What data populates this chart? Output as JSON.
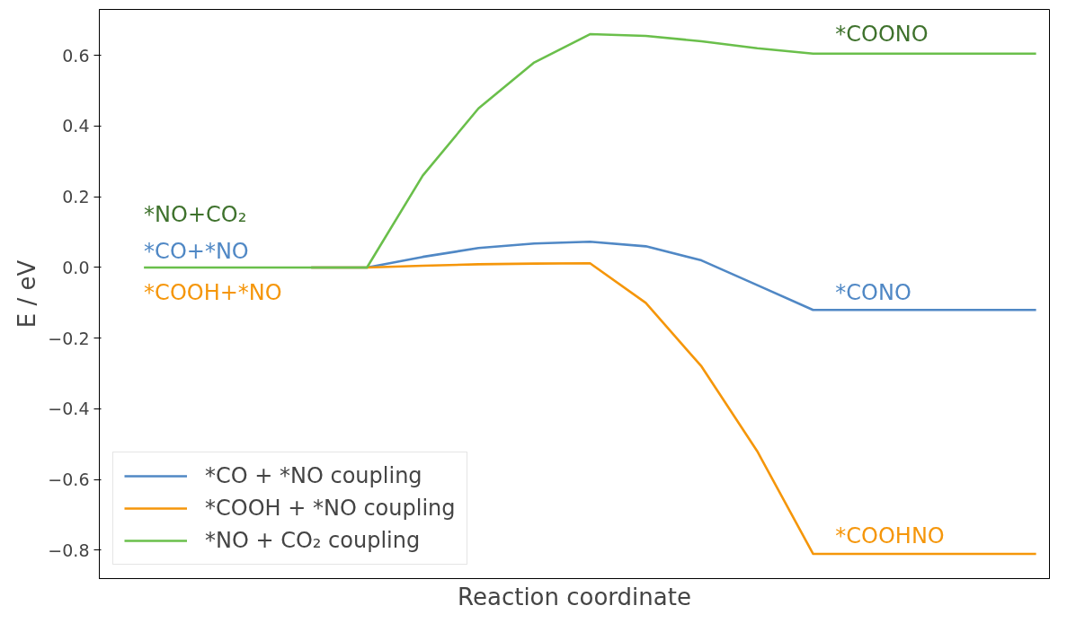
{
  "chart_data": {
    "type": "line",
    "xlabel": "Reaction coordinate",
    "ylabel": "E / eV",
    "categories": [
      null,
      null,
      null,
      null,
      null,
      null,
      null,
      null,
      null,
      null,
      null,
      null,
      null,
      null,
      null,
      null,
      null
    ],
    "ylim": [
      -0.88,
      0.73
    ],
    "yticks": [
      {
        "value": -0.8,
        "label": "−0.8"
      },
      {
        "value": -0.6,
        "label": "−0.6"
      },
      {
        "value": -0.4,
        "label": "−0.4"
      },
      {
        "value": -0.2,
        "label": "−0.2"
      },
      {
        "value": 0.0,
        "label": "0.0"
      },
      {
        "value": 0.2,
        "label": "0.2"
      },
      {
        "value": 0.4,
        "label": "0.4"
      },
      {
        "value": 0.6,
        "label": "0.6"
      }
    ],
    "tick_labels": "y",
    "legend": "bottom left",
    "line_style": "solid",
    "series": [
      {
        "name": "*CO + *NO coupling",
        "color": "#5088c5",
        "values": [
          null,
          null,
          null,
          0,
          0,
          0.03,
          0.055,
          0.068,
          0.073,
          0.06,
          0.02,
          -0.05,
          -0.12,
          -0.12,
          -0.12,
          -0.12,
          -0.12
        ]
      },
      {
        "name": "*COOH + *NO coupling",
        "color": "#f5960a",
        "values": [
          null,
          null,
          null,
          0,
          0,
          0.005,
          0.009,
          0.011,
          0.012,
          -0.1,
          -0.28,
          -0.52,
          -0.81,
          -0.81,
          -0.81,
          -0.81,
          -0.81
        ]
      },
      {
        "name": "*NO + CO₂ coupling",
        "color": "#6abf4b",
        "values": [
          0,
          0,
          0,
          0,
          0,
          0.26,
          0.45,
          0.58,
          0.66,
          0.655,
          0.64,
          0.62,
          0.605,
          0.605,
          0.605,
          0.605,
          0.605
        ]
      }
    ],
    "annotations": [
      "*NO+CO₂",
      "*CO+*NO",
      "*COOH+*NO",
      "*COONO",
      "*CONO",
      "*COOHNO"
    ]
  }
}
